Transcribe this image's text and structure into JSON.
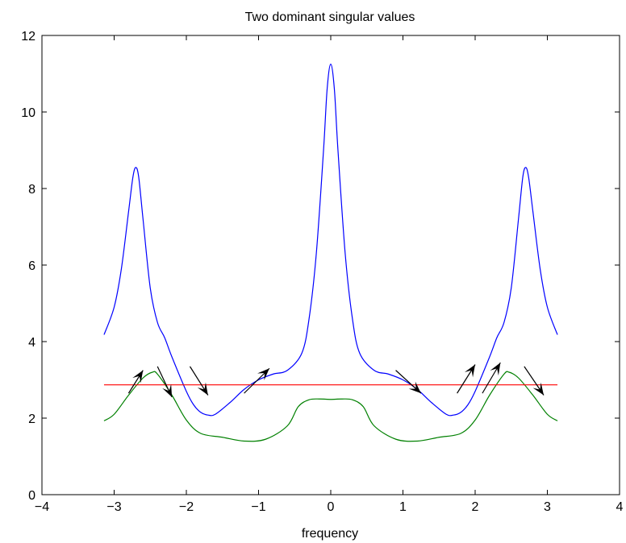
{
  "chart_data": {
    "type": "line",
    "title": "Two dominant singular values",
    "xlabel": "frequency",
    "ylabel": "",
    "xlim": [
      -4,
      4
    ],
    "ylim": [
      0,
      12
    ],
    "xticks": [
      -4,
      -3,
      -2,
      -1,
      0,
      1,
      2,
      3,
      4
    ],
    "yticks": [
      0,
      2,
      4,
      6,
      8,
      10,
      12
    ],
    "xtick_labels": [
      "−4",
      "−3",
      "−2",
      "−1",
      "0",
      "1",
      "2",
      "3",
      "4"
    ],
    "ytick_labels": [
      "0",
      "2",
      "4",
      "6",
      "8",
      "10",
      "12"
    ],
    "grid": false,
    "series": [
      {
        "color": "#0000ff",
        "x": [
          -3.14,
          -3.0,
          -2.9,
          -2.8,
          -2.74,
          -2.7,
          -2.66,
          -2.6,
          -2.5,
          -2.4,
          -2.3,
          -2.2,
          -2.0,
          -1.9,
          -1.8,
          -1.7,
          -1.6,
          -1.4,
          -1.2,
          -1.0,
          -0.8,
          -0.6,
          -0.4,
          -0.3,
          -0.2,
          -0.1,
          -0.05,
          0.0,
          0.05,
          0.1,
          0.2,
          0.3,
          0.4,
          0.6,
          0.8,
          1.0,
          1.2,
          1.4,
          1.6,
          1.7,
          1.8,
          1.9,
          2.0,
          2.2,
          2.3,
          2.4,
          2.5,
          2.6,
          2.66,
          2.7,
          2.74,
          2.8,
          2.9,
          3.0,
          3.14
        ],
        "y": [
          4.18,
          4.9,
          5.9,
          7.4,
          8.3,
          8.55,
          8.3,
          7.2,
          5.4,
          4.5,
          4.1,
          3.6,
          2.7,
          2.35,
          2.15,
          2.08,
          2.1,
          2.4,
          2.75,
          3.0,
          3.15,
          3.25,
          3.7,
          4.6,
          6.3,
          9.0,
          10.6,
          11.25,
          10.6,
          9.0,
          6.3,
          4.6,
          3.7,
          3.25,
          3.15,
          3.0,
          2.75,
          2.4,
          2.1,
          2.08,
          2.15,
          2.35,
          2.7,
          3.6,
          4.1,
          4.5,
          5.4,
          7.2,
          8.3,
          8.55,
          8.3,
          7.4,
          5.9,
          4.9,
          4.18
        ]
      },
      {
        "color": "#008000",
        "x": [
          -3.14,
          -3.0,
          -2.8,
          -2.6,
          -2.47,
          -2.4,
          -2.2,
          -2.0,
          -1.8,
          -1.5,
          -1.2,
          -0.9,
          -0.6,
          -0.45,
          -0.3,
          -0.15,
          0.0,
          0.15,
          0.3,
          0.45,
          0.6,
          0.9,
          1.2,
          1.5,
          1.8,
          2.0,
          2.2,
          2.4,
          2.47,
          2.6,
          2.8,
          3.0,
          3.14
        ],
        "y": [
          1.93,
          2.1,
          2.6,
          3.05,
          3.2,
          3.15,
          2.6,
          1.95,
          1.6,
          1.5,
          1.4,
          1.45,
          1.8,
          2.3,
          2.48,
          2.5,
          2.49,
          2.5,
          2.48,
          2.3,
          1.8,
          1.45,
          1.4,
          1.5,
          1.6,
          1.95,
          2.6,
          3.15,
          3.2,
          3.05,
          2.6,
          2.1,
          1.93
        ]
      },
      {
        "color": "#ff0000",
        "x": [
          -3.14,
          3.14
        ],
        "y": [
          2.87,
          2.87
        ]
      }
    ],
    "arrows": [
      {
        "from": [
          -2.8,
          2.65
        ],
        "to": [
          -2.6,
          3.25
        ]
      },
      {
        "from": [
          -2.4,
          3.35
        ],
        "to": [
          -2.2,
          2.55
        ]
      },
      {
        "from": [
          -1.95,
          3.35
        ],
        "to": [
          -1.7,
          2.6
        ]
      },
      {
        "from": [
          -1.2,
          2.65
        ],
        "to": [
          -0.85,
          3.3
        ]
      },
      {
        "from": [
          0.9,
          3.25
        ],
        "to": [
          1.25,
          2.65
        ]
      },
      {
        "from": [
          1.75,
          2.65
        ],
        "to": [
          2.0,
          3.4
        ]
      },
      {
        "from": [
          2.1,
          2.65
        ],
        "to": [
          2.35,
          3.45
        ]
      },
      {
        "from": [
          2.68,
          3.35
        ],
        "to": [
          2.95,
          2.6
        ]
      }
    ]
  }
}
